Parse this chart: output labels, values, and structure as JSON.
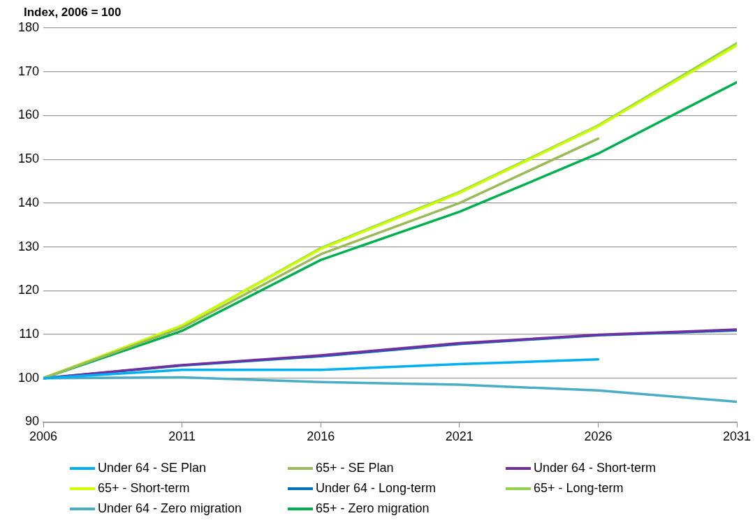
{
  "chart_data": {
    "type": "line",
    "ylabel": "Index, 2006 = 100",
    "x": [
      2006,
      2011,
      2016,
      2021,
      2026,
      2031
    ],
    "xlim": [
      2006,
      2031
    ],
    "xticks": [
      2006,
      2011,
      2016,
      2021,
      2026,
      2031
    ],
    "ylim": [
      90,
      180
    ],
    "yticks": [
      90,
      100,
      110,
      120,
      130,
      140,
      150,
      160,
      170,
      180
    ],
    "grid": "y",
    "legend": "bottom",
    "marker": "none",
    "line_style": "solid",
    "series": [
      {
        "name": "Under 64 - SE Plan",
        "color": "#00b0f0",
        "values": [
          100,
          101.9,
          101.9,
          103.2,
          104.3,
          null
        ]
      },
      {
        "name": "65+ - SE Plan",
        "color": "#9bbb59",
        "values": [
          100,
          111.5,
          128.3,
          140,
          154.7,
          null
        ]
      },
      {
        "name": "Under 64 - Short-term",
        "color": "#7030a0",
        "values": [
          100,
          103,
          105.2,
          108,
          109.9,
          111.1
        ]
      },
      {
        "name": "65+ - Short-term",
        "color": "#ccff00",
        "values": [
          100,
          112,
          129.5,
          142.3,
          157.5,
          176
        ]
      },
      {
        "name": "Under 64 - Long-term",
        "color": "#0070c0",
        "values": [
          100,
          102.9,
          105,
          107.8,
          109.8,
          110.9
        ]
      },
      {
        "name": "65+ - Long-term",
        "color": "#92d050",
        "values": [
          100,
          112,
          129.7,
          142.5,
          157.7,
          176.5
        ]
      },
      {
        "name": "Under 64 - Zero migration",
        "color": "#4bacc6",
        "values": [
          100,
          100.2,
          99.1,
          98.5,
          97.2,
          94.6
        ]
      },
      {
        "name": "65+ - Zero migration",
        "color": "#00b050",
        "values": [
          100,
          110.8,
          127,
          138,
          151.3,
          167.6
        ]
      }
    ]
  }
}
